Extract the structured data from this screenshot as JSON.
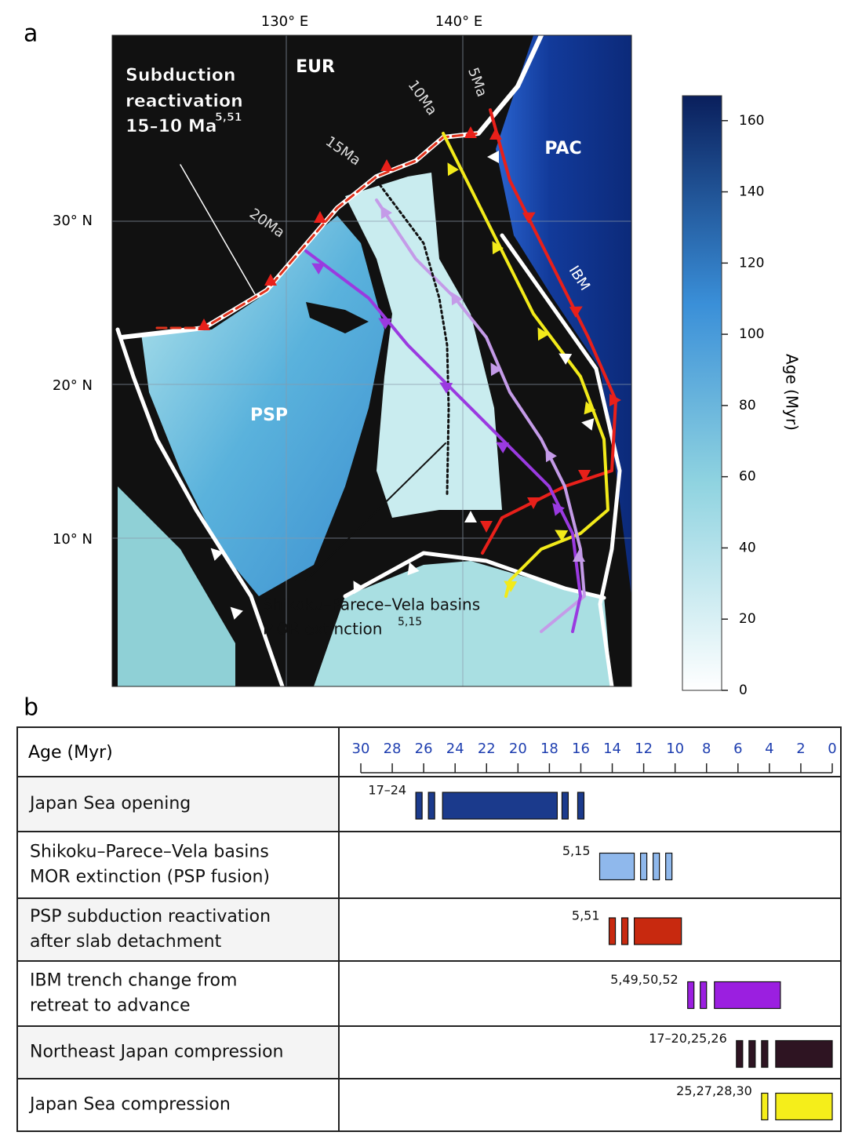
{
  "panel_a": {
    "label": "a",
    "lon_labels": [
      "130° E",
      "140° E"
    ],
    "lat_labels": [
      "30° N",
      "20° N",
      "10° N"
    ],
    "plate_labels": [
      "EUR",
      "PAC",
      "PSP",
      "IBM"
    ],
    "age_labels": [
      "5Ma",
      "10Ma",
      "15Ma",
      "20Ma"
    ],
    "annotations": [
      {
        "lines": [
          "Subduction",
          "reactivation",
          "15–10 Ma"
        ],
        "superscript": "5,51"
      },
      {
        "lines": [
          "Shikoku–Parece–Vela basins",
          "MOR extinction"
        ],
        "superscript": "5,15"
      }
    ],
    "colorbar": {
      "label": "Age (Myr)",
      "lim": [
        0,
        167
      ],
      "ticks": [
        0,
        20,
        40,
        60,
        80,
        100,
        120,
        140,
        160
      ]
    }
  },
  "panel_b": {
    "label": "b",
    "header": "Age (Myr)",
    "xlim": [
      30,
      0
    ],
    "xticks": [
      30,
      28,
      26,
      24,
      22,
      20,
      18,
      16,
      14,
      12,
      10,
      8,
      6,
      4,
      2,
      0
    ],
    "rows": [
      {
        "label": [
          "Japan Sea opening"
        ],
        "reference": "17–24",
        "color": "#1b3a8c",
        "bars": [
          [
            26.5,
            26.1
          ],
          [
            25.7,
            25.3
          ],
          [
            24.8,
            17.5
          ],
          [
            17.2,
            16.8
          ],
          [
            16.2,
            15.8
          ]
        ]
      },
      {
        "label": [
          "Shikoku–Parece–Vela basins",
          "MOR extinction  (PSP fusion)"
        ],
        "reference": "5,15",
        "color": "#8fb8ec",
        "bars": [
          [
            14.8,
            12.6
          ],
          [
            12.2,
            11.8
          ],
          [
            11.4,
            11.0
          ],
          [
            10.6,
            10.2
          ]
        ]
      },
      {
        "label": [
          "PSP subduction reactivation",
          "after slab detachment"
        ],
        "reference": "5,51",
        "color": "#c8290f",
        "bars": [
          [
            14.2,
            13.8
          ],
          [
            13.4,
            13.0
          ],
          [
            12.6,
            9.6
          ]
        ]
      },
      {
        "label": [
          "IBM trench change from",
          "retreat to advance"
        ],
        "reference": "5,49,50,52",
        "color": "#9b1fe0",
        "bars": [
          [
            9.2,
            8.8
          ],
          [
            8.4,
            8.0
          ],
          [
            7.5,
            3.3
          ]
        ]
      },
      {
        "label": [
          "Northeast Japan compression"
        ],
        "reference": "17–20,25,26",
        "color": "#2e1422",
        "bars": [
          [
            6.1,
            5.7
          ],
          [
            5.3,
            4.9
          ],
          [
            4.5,
            4.1
          ],
          [
            3.6,
            0
          ]
        ]
      },
      {
        "label": [
          "Japan Sea compression"
        ],
        "reference": "25,27,28,30",
        "color": "#f5ee1a",
        "bars": [
          [
            4.5,
            4.1
          ],
          [
            3.6,
            0
          ]
        ]
      }
    ]
  }
}
